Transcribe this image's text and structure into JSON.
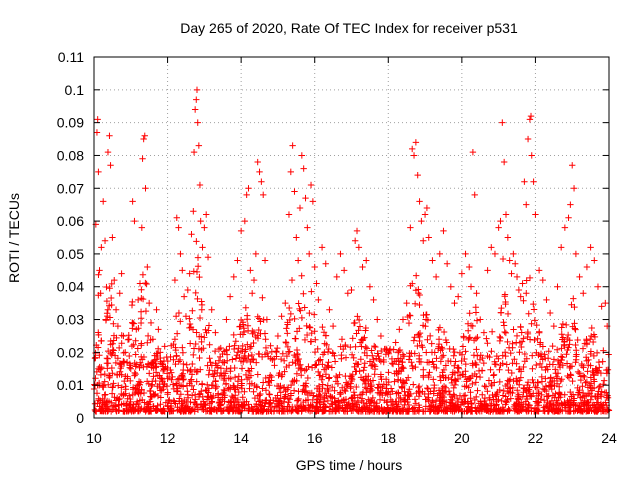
{
  "chart_data": {
    "type": "scatter",
    "title": "Day 265 of 2020, Rate Of TEC Index for receiver p531",
    "xlabel": "GPS time / hours",
    "ylabel": "ROTI / TECUs",
    "xlim": [
      10,
      24
    ],
    "ylim": [
      0,
      0.11
    ],
    "x_ticks": [
      "10",
      "12",
      "14",
      "16",
      "18",
      "20",
      "22",
      "24"
    ],
    "y_ticks": [
      "0",
      "0.01",
      "0.02",
      "0.03",
      "0.04",
      "0.05",
      "0.06",
      "0.07",
      "0.08",
      "0.09",
      "0.1",
      "0.11"
    ],
    "grid": true,
    "marker": "plus",
    "series_color": "#ff0000",
    "series": [
      {
        "points": [
          [
            10.05,
            0.059
          ],
          [
            10.08,
            0.087
          ],
          [
            10.1,
            0.091
          ],
          [
            10.12,
            0.075
          ],
          [
            10.15,
            0.045
          ],
          [
            10.18,
            0.038
          ],
          [
            10.2,
            0.052
          ],
          [
            10.25,
            0.066
          ],
          [
            10.3,
            0.054
          ],
          [
            10.33,
            0.03
          ],
          [
            10.38,
            0.081
          ],
          [
            10.42,
            0.086
          ],
          [
            10.45,
            0.077
          ],
          [
            10.5,
            0.055
          ],
          [
            10.55,
            0.042
          ],
          [
            10.6,
            0.033
          ],
          [
            10.65,
            0.028
          ],
          [
            10.7,
            0.038
          ],
          [
            10.75,
            0.044
          ],
          [
            10.8,
            0.025
          ],
          [
            10.85,
            0.02
          ],
          [
            10.9,
            0.017
          ],
          [
            10.95,
            0.024
          ],
          [
            11.0,
            0.015
          ],
          [
            11.05,
            0.066
          ],
          [
            11.1,
            0.06
          ],
          [
            11.15,
            0.027
          ],
          [
            11.2,
            0.036
          ],
          [
            11.25,
            0.041
          ],
          [
            11.3,
            0.058
          ],
          [
            11.32,
            0.079
          ],
          [
            11.35,
            0.085
          ],
          [
            11.38,
            0.086
          ],
          [
            11.4,
            0.07
          ],
          [
            11.45,
            0.046
          ],
          [
            11.5,
            0.035
          ],
          [
            11.55,
            0.029
          ],
          [
            11.6,
            0.024
          ],
          [
            11.65,
            0.019
          ],
          [
            11.7,
            0.033
          ],
          [
            11.75,
            0.027
          ],
          [
            11.8,
            0.02
          ],
          [
            11.9,
            0.015
          ],
          [
            12.0,
            0.012
          ],
          [
            12.1,
            0.022
          ],
          [
            12.2,
            0.042
          ],
          [
            12.25,
            0.061
          ],
          [
            12.3,
            0.058
          ],
          [
            12.35,
            0.05
          ],
          [
            12.4,
            0.045
          ],
          [
            12.45,
            0.037
          ],
          [
            12.5,
            0.031
          ],
          [
            12.55,
            0.039
          ],
          [
            12.6,
            0.044
          ],
          [
            12.65,
            0.056
          ],
          [
            12.7,
            0.063
          ],
          [
            12.72,
            0.081
          ],
          [
            12.75,
            0.094
          ],
          [
            12.78,
            0.097
          ],
          [
            12.8,
            0.1
          ],
          [
            12.82,
            0.09
          ],
          [
            12.85,
            0.083
          ],
          [
            12.88,
            0.071
          ],
          [
            12.9,
            0.06
          ],
          [
            12.95,
            0.052
          ],
          [
            13.0,
            0.058
          ],
          [
            13.05,
            0.062
          ],
          [
            13.1,
            0.049
          ],
          [
            13.2,
            0.033
          ],
          [
            13.3,
            0.026
          ],
          [
            13.4,
            0.021
          ],
          [
            13.5,
            0.017
          ],
          [
            13.6,
            0.03
          ],
          [
            13.7,
            0.037
          ],
          [
            13.8,
            0.043
          ],
          [
            13.9,
            0.048
          ],
          [
            14.0,
            0.057
          ],
          [
            14.1,
            0.06
          ],
          [
            14.15,
            0.068
          ],
          [
            14.2,
            0.07
          ],
          [
            14.25,
            0.045
          ],
          [
            14.3,
            0.038
          ],
          [
            14.35,
            0.042
          ],
          [
            14.4,
            0.05
          ],
          [
            14.45,
            0.078
          ],
          [
            14.5,
            0.075
          ],
          [
            14.55,
            0.072
          ],
          [
            14.6,
            0.068
          ],
          [
            14.65,
            0.048
          ],
          [
            14.7,
            0.03
          ],
          [
            14.8,
            0.022
          ],
          [
            14.9,
            0.018
          ],
          [
            15.0,
            0.025
          ],
          [
            15.1,
            0.031
          ],
          [
            15.2,
            0.035
          ],
          [
            15.3,
            0.062
          ],
          [
            15.35,
            0.075
          ],
          [
            15.4,
            0.083
          ],
          [
            15.45,
            0.069
          ],
          [
            15.5,
            0.055
          ],
          [
            15.55,
            0.048
          ],
          [
            15.6,
            0.064
          ],
          [
            15.65,
            0.08
          ],
          [
            15.7,
            0.076
          ],
          [
            15.75,
            0.067
          ],
          [
            15.8,
            0.058
          ],
          [
            15.85,
            0.05
          ],
          [
            15.9,
            0.071
          ],
          [
            15.95,
            0.066
          ],
          [
            16.0,
            0.046
          ],
          [
            16.05,
            0.041
          ],
          [
            16.1,
            0.036
          ],
          [
            16.2,
            0.052
          ],
          [
            16.3,
            0.047
          ],
          [
            16.4,
            0.033
          ],
          [
            16.5,
            0.028
          ],
          [
            16.6,
            0.043
          ],
          [
            16.7,
            0.05
          ],
          [
            16.8,
            0.045
          ],
          [
            16.9,
            0.038
          ],
          [
            17.0,
            0.039
          ],
          [
            17.1,
            0.054
          ],
          [
            17.15,
            0.057
          ],
          [
            17.2,
            0.052
          ],
          [
            17.3,
            0.046
          ],
          [
            17.4,
            0.048
          ],
          [
            17.5,
            0.04
          ],
          [
            17.6,
            0.036
          ],
          [
            17.7,
            0.03
          ],
          [
            17.8,
            0.025
          ],
          [
            17.9,
            0.021
          ],
          [
            18.0,
            0.02
          ],
          [
            18.1,
            0.018
          ],
          [
            18.2,
            0.023
          ],
          [
            18.3,
            0.027
          ],
          [
            18.4,
            0.03
          ],
          [
            18.5,
            0.035
          ],
          [
            18.6,
            0.058
          ],
          [
            18.65,
            0.082
          ],
          [
            18.7,
            0.08
          ],
          [
            18.75,
            0.084
          ],
          [
            18.8,
            0.074
          ],
          [
            18.85,
            0.066
          ],
          [
            18.9,
            0.06
          ],
          [
            18.95,
            0.054
          ],
          [
            19.0,
            0.062
          ],
          [
            19.05,
            0.064
          ],
          [
            19.1,
            0.055
          ],
          [
            19.2,
            0.048
          ],
          [
            19.3,
            0.043
          ],
          [
            19.4,
            0.05
          ],
          [
            19.5,
            0.057
          ],
          [
            19.6,
            0.047
          ],
          [
            19.7,
            0.04
          ],
          [
            19.8,
            0.035
          ],
          [
            19.9,
            0.037
          ],
          [
            20.0,
            0.044
          ],
          [
            20.1,
            0.05
          ],
          [
            20.2,
            0.046
          ],
          [
            20.3,
            0.081
          ],
          [
            20.35,
            0.068
          ],
          [
            20.4,
            0.038
          ],
          [
            20.5,
            0.03
          ],
          [
            20.6,
            0.026
          ],
          [
            20.7,
            0.045
          ],
          [
            20.8,
            0.052
          ],
          [
            20.9,
            0.05
          ],
          [
            21.0,
            0.058
          ],
          [
            21.05,
            0.06
          ],
          [
            21.1,
            0.09
          ],
          [
            21.15,
            0.078
          ],
          [
            21.2,
            0.062
          ],
          [
            21.25,
            0.055
          ],
          [
            21.3,
            0.048
          ],
          [
            21.35,
            0.044
          ],
          [
            21.4,
            0.05
          ],
          [
            21.45,
            0.047
          ],
          [
            21.5,
            0.043
          ],
          [
            21.55,
            0.039
          ],
          [
            21.6,
            0.037
          ],
          [
            21.65,
            0.041
          ],
          [
            21.7,
            0.072
          ],
          [
            21.75,
            0.065
          ],
          [
            21.8,
            0.085
          ],
          [
            21.85,
            0.091
          ],
          [
            21.88,
            0.092
          ],
          [
            21.9,
            0.08
          ],
          [
            21.95,
            0.072
          ],
          [
            22.0,
            0.062
          ],
          [
            22.1,
            0.045
          ],
          [
            22.2,
            0.042
          ],
          [
            22.3,
            0.036
          ],
          [
            22.4,
            0.032
          ],
          [
            22.5,
            0.028
          ],
          [
            22.6,
            0.04
          ],
          [
            22.7,
            0.052
          ],
          [
            22.8,
            0.058
          ],
          [
            22.9,
            0.061
          ],
          [
            22.95,
            0.065
          ],
          [
            23.0,
            0.077
          ],
          [
            23.05,
            0.07
          ],
          [
            23.1,
            0.05
          ],
          [
            23.2,
            0.043
          ],
          [
            23.3,
            0.038
          ],
          [
            23.4,
            0.046
          ],
          [
            23.5,
            0.052
          ],
          [
            23.6,
            0.048
          ],
          [
            23.7,
            0.04
          ],
          [
            23.8,
            0.034
          ],
          [
            23.9,
            0.035
          ],
          [
            23.95,
            0.028
          ]
        ]
      }
    ]
  }
}
